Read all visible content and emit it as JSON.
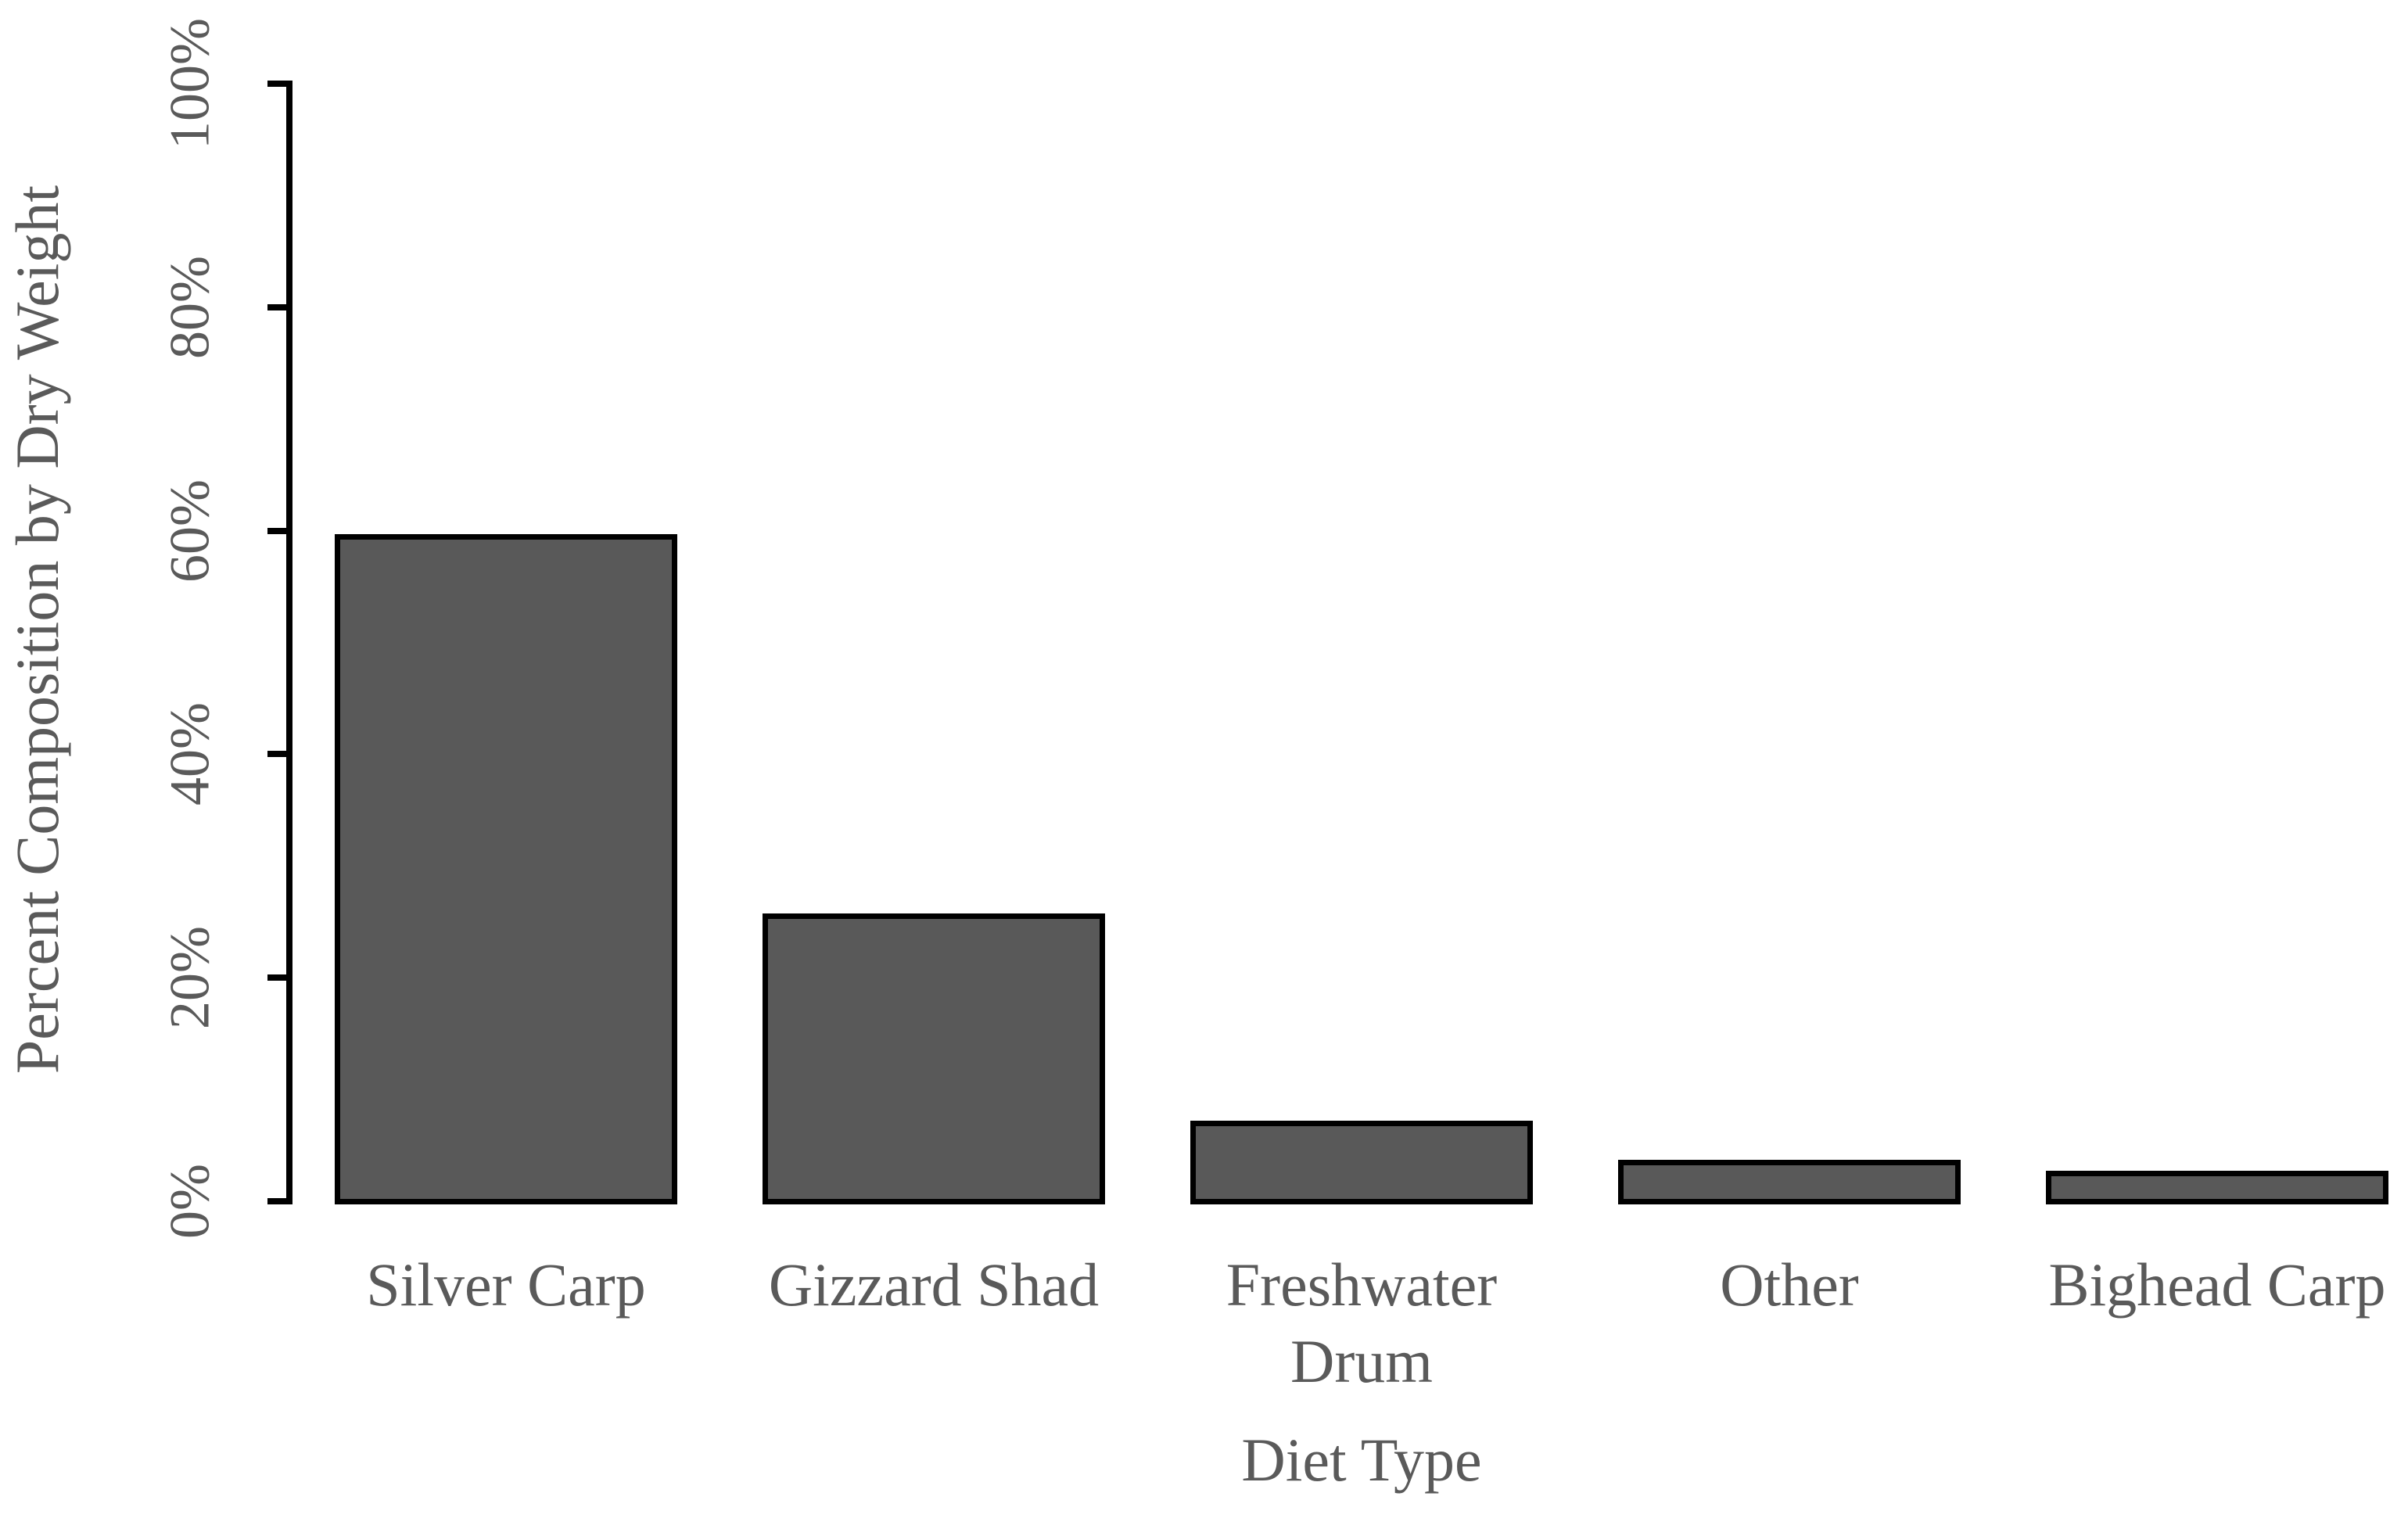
{
  "chart_data": {
    "type": "bar",
    "title": "",
    "xlabel": "Diet Type",
    "ylabel": "Percent Composition by Dry Weight",
    "categories": [
      "Silver Carp",
      "Gizzard Shad",
      "Freshwater\nDrum",
      "Other",
      "Bighead Carp"
    ],
    "values": [
      60,
      26,
      7.5,
      4,
      3
    ],
    "unit": "%",
    "y_ticks": [
      "0%",
      "20%",
      "40%",
      "60%",
      "80%",
      "100%"
    ],
    "y_tick_values": [
      0,
      20,
      40,
      60,
      80,
      100
    ],
    "ylim": [
      0,
      100
    ],
    "grid": false,
    "legend": "none",
    "colors": {
      "bar_fill": "#595959",
      "bar_border": "#000000",
      "axis": "#000000",
      "text": "#5a5a5a",
      "background": "#ffffff"
    }
  }
}
